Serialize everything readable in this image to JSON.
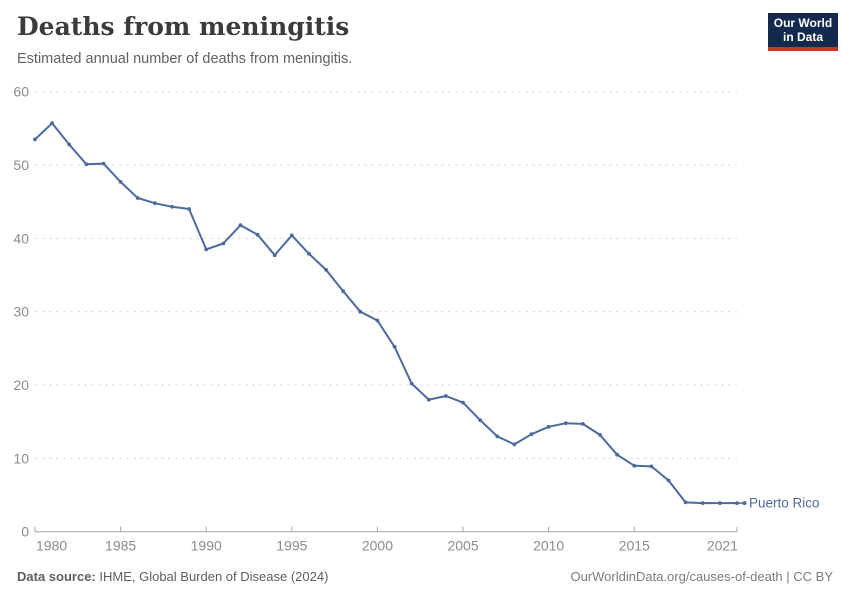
{
  "header": {
    "title": "Deaths from meningitis",
    "subtitle": "Estimated annual number of deaths from meningitis."
  },
  "logo": {
    "line1": "Our World",
    "line2": "in Data",
    "bg_color": "#13294d",
    "accent_color": "#d13322"
  },
  "footer": {
    "source_bold": "Data source:",
    "source_rest": " IHME, Global Burden of Disease (2024)",
    "license": "OurWorldinData.org/causes-of-death | CC BY"
  },
  "chart_data": {
    "type": "line",
    "title": "Deaths from meningitis",
    "subtitle": "Estimated annual number of deaths from meningitis.",
    "x": [
      1980,
      1981,
      1982,
      1983,
      1984,
      1985,
      1986,
      1987,
      1988,
      1989,
      1990,
      1991,
      1992,
      1993,
      1994,
      1995,
      1996,
      1997,
      1998,
      1999,
      2000,
      2001,
      2002,
      2003,
      2004,
      2005,
      2006,
      2007,
      2008,
      2009,
      2010,
      2011,
      2012,
      2013,
      2014,
      2015,
      2016,
      2017,
      2018,
      2019,
      2020,
      2021
    ],
    "series": [
      {
        "name": "Puerto Rico",
        "color": "#4c6a9c",
        "values": [
          53.5,
          55.7,
          52.8,
          50.1,
          50.2,
          47.7,
          45.5,
          44.8,
          44.3,
          44.0,
          38.5,
          39.3,
          41.8,
          40.5,
          37.7,
          40.4,
          37.9,
          35.7,
          32.8,
          30.0,
          28.8,
          25.2,
          20.2,
          18.0,
          18.5,
          17.6,
          15.2,
          13.0,
          11.9,
          13.3,
          14.3,
          14.8,
          14.7,
          13.2,
          10.5,
          9.0,
          8.9,
          7.0,
          4.0,
          3.9,
          3.9,
          3.9
        ]
      }
    ],
    "xlabel": "",
    "ylabel": "",
    "ylim": [
      0,
      60
    ],
    "xlim": [
      1980,
      2021
    ],
    "yticks": [
      0,
      10,
      20,
      30,
      40,
      50,
      60
    ],
    "xticks": [
      1980,
      1985,
      1990,
      1995,
      2000,
      2005,
      2010,
      2015,
      2021
    ],
    "grid": true,
    "grid_style": "dashed-horizontal",
    "legend_position": "end-of-line-label",
    "colors": {
      "line": "#4c6a9c",
      "grid": "#dcdcdc",
      "axis": "#a5a5a5",
      "tick_label": "#8c8c8c"
    }
  }
}
